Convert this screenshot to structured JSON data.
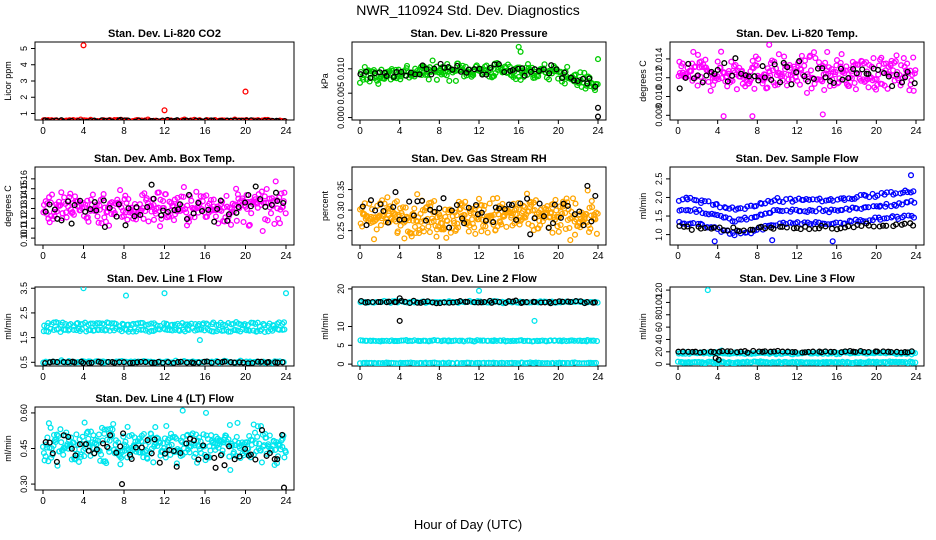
{
  "title": "NWR_110924 Std. Dev. Diagnostics",
  "xlabel": "Hour of Day (UTC)",
  "colors": {
    "red": "#ff0000",
    "green": "#00cc00",
    "magenta": "#ff00ff",
    "orange": "#ffa500",
    "blue": "#0000ff",
    "cyan": "#00e5ee",
    "black": "#000000"
  },
  "chart_data": [
    {
      "type": "scatter",
      "title": "Stan. Dev. Li-820 CO2",
      "ylabel": "Licor ppm",
      "xlim": [
        0,
        24
      ],
      "ylim": [
        0.6,
        5.4
      ],
      "xticks": [
        "0",
        "4",
        "8",
        "12",
        "16",
        "20",
        "24"
      ],
      "yticks": [
        "1",
        "2",
        "3",
        "4",
        "5"
      ],
      "series": [
        {
          "color": "red",
          "bands": [
            [
              0.55,
              0.05
            ]
          ],
          "n": 150,
          "points": [
            [
              4,
              5.2
            ],
            [
              12,
              1.2
            ],
            [
              20,
              2.35
            ]
          ]
        },
        {
          "color": "black",
          "bands": [
            [
              0.55,
              0.04
            ]
          ],
          "n": 60
        }
      ]
    },
    {
      "type": "scatter",
      "title": "Stan. Dev. Li-820 Pressure",
      "ylabel": "kPa",
      "xlim": [
        0,
        24
      ],
      "ylim": [
        -0.0005,
        0.0155
      ],
      "xticks": [
        "0",
        "4",
        "8",
        "12",
        "16",
        "20",
        "24"
      ],
      "yticks": [
        "0.000",
        "0.005",
        "0.010"
      ],
      "ytickvals": [
        0,
        0.005,
        0.01
      ],
      "series": [
        {
          "color": "green",
          "bands": [
            [
              0.0085,
              0.0012
            ]
          ],
          "n": 260,
          "arch": true,
          "points": [
            [
              16,
              0.0145
            ],
            [
              24,
              0.012
            ],
            [
              16.2,
              0.0135
            ]
          ]
        },
        {
          "color": "black",
          "bands": [
            [
              0.0085,
              0.0009
            ]
          ],
          "n": 55,
          "arch": true,
          "points": [
            [
              24,
              0.0002
            ],
            [
              24,
              0.002
            ]
          ]
        }
      ]
    },
    {
      "type": "scatter",
      "title": "Stan. Dev. Li-820 Temp.",
      "ylabel": "degrees C",
      "xlim": [
        0,
        24
      ],
      "ylim": [
        0.0075,
        0.0158
      ],
      "xticks": [
        "0",
        "4",
        "8",
        "12",
        "16",
        "20",
        "24"
      ],
      "yticks": [
        "0.008",
        "0.010",
        "0.012",
        "0.014"
      ],
      "ytickvals": [
        0.008,
        0.01,
        0.012,
        0.014
      ],
      "series": [
        {
          "color": "magenta",
          "bands": [
            [
              0.0125,
              0.0013
            ]
          ],
          "n": 300,
          "points": [
            [
              9.2,
              0.0155
            ],
            [
              4.6,
              0.0079
            ],
            [
              14.6,
              0.0081
            ],
            [
              7.5,
              0.0079
            ]
          ]
        },
        {
          "color": "black",
          "bands": [
            [
              0.0125,
              0.001
            ]
          ],
          "n": 55
        }
      ]
    },
    {
      "type": "scatter",
      "title": "Stan. Dev. Amb. Box Temp.",
      "ylabel": "degrees C",
      "xlim": [
        0,
        24
      ],
      "ylim": [
        0.093,
        0.172
      ],
      "xticks": [
        "0",
        "4",
        "8",
        "12",
        "16",
        "20",
        "24"
      ],
      "yticks": [
        "0.10",
        "0.11",
        "0.12",
        "0.13",
        "0.14",
        "0.15",
        "0.16"
      ],
      "ytickvals": [
        0.1,
        0.11,
        0.12,
        0.13,
        0.14,
        0.15,
        0.16
      ],
      "series": [
        {
          "color": "magenta",
          "bands": [
            [
              0.131,
              0.013
            ]
          ],
          "n": 300
        },
        {
          "color": "black",
          "bands": [
            [
              0.131,
              0.012
            ]
          ],
          "n": 55
        }
      ]
    },
    {
      "type": "scatter",
      "title": "Stan. Dev. Gas Stream RH",
      "ylabel": "percent",
      "xlim": [
        0,
        24
      ],
      "ylim": [
        0.215,
        0.405
      ],
      "xticks": [
        "0",
        "4",
        "8",
        "12",
        "16",
        "20",
        "24"
      ],
      "yticks": [
        "0.25",
        "0.30",
        "0.35"
      ],
      "ytickvals": [
        0.25,
        0.3,
        0.35
      ],
      "series": [
        {
          "color": "orange",
          "bands": [
            [
              0.285,
              0.032
            ]
          ],
          "n": 360
        },
        {
          "color": "black",
          "bands": [
            [
              0.29,
              0.035
            ]
          ],
          "n": 55
        }
      ]
    },
    {
      "type": "scatter",
      "title": "Stan. Dev. Sample Flow",
      "ylabel": "ml/min",
      "xlim": [
        0,
        24
      ],
      "ylim": [
        0.72,
        2.82
      ],
      "xticks": [
        "0",
        "4",
        "8",
        "12",
        "16",
        "20",
        "24"
      ],
      "yticks": [
        "1.0",
        "1.5",
        "2.0",
        "2.5"
      ],
      "ytickvals": [
        1.0,
        1.5,
        2.0,
        2.5
      ],
      "series": [
        {
          "color": "blue",
          "bands": [
            [
              1.95,
              0.04
            ],
            [
              1.65,
              0.04
            ],
            [
              1.3,
              0.04
            ]
          ],
          "n": 240,
          "dip": 0.45,
          "points": [
            [
              23.5,
              2.6
            ],
            [
              3.7,
              0.82
            ],
            [
              15.6,
              0.82
            ],
            [
              9.5,
              0.85
            ]
          ]
        },
        {
          "color": "black",
          "bands": [
            [
              1.2,
              0.05
            ]
          ],
          "n": 55,
          "dip": 0.15
        }
      ]
    },
    {
      "type": "scatter",
      "title": "Stan. Dev. Line 1 Flow",
      "ylabel": "ml/min",
      "xlim": [
        0,
        24
      ],
      "ylim": [
        0.35,
        3.55
      ],
      "xticks": [
        "0",
        "4",
        "8",
        "12",
        "16",
        "20",
        "24"
      ],
      "yticks": [
        "0.5",
        "1.5",
        "2.5",
        "3.5"
      ],
      "ytickvals": [
        0.5,
        1.5,
        2.5,
        3.5
      ],
      "series": [
        {
          "color": "cyan",
          "bands": [
            [
              2.05,
              0.06
            ],
            [
              1.8,
              0.05
            ],
            [
              0.52,
              0.03
            ]
          ],
          "n": 300,
          "points": [
            [
              4,
              3.5
            ],
            [
              8.2,
              3.2
            ],
            [
              12,
              3.3
            ],
            [
              24,
              3.3
            ],
            [
              15.5,
              1.4
            ]
          ]
        },
        {
          "color": "black",
          "bands": [
            [
              0.5,
              0.03
            ]
          ],
          "n": 55
        }
      ]
    },
    {
      "type": "scatter",
      "title": "Stan. Dev. Line 2 Flow",
      "ylabel": "ml/min",
      "xlim": [
        0,
        24
      ],
      "ylim": [
        -0.5,
        20.5
      ],
      "xticks": [
        "0",
        "4",
        "8",
        "12",
        "16",
        "20",
        "24"
      ],
      "yticks": [
        "0",
        "5",
        "10",
        "20"
      ],
      "ytickvals": [
        0,
        5,
        10,
        20
      ],
      "series": [
        {
          "color": "cyan",
          "bands": [
            [
              16.5,
              0.2
            ],
            [
              6.2,
              0.12
            ],
            [
              0.3,
              0.08
            ]
          ],
          "n": 330,
          "points": [
            [
              12,
              19.5
            ],
            [
              17.6,
              11.5
            ]
          ]
        },
        {
          "color": "black",
          "bands": [
            [
              16.5,
              0.25
            ]
          ],
          "n": 60,
          "points": [
            [
              4,
              11.5
            ],
            [
              4,
              17.5
            ]
          ]
        }
      ]
    },
    {
      "type": "scatter",
      "title": "Stan. Dev. Line 3 Flow",
      "ylabel": "ml/min",
      "xlim": [
        0,
        24
      ],
      "ylim": [
        -3,
        125
      ],
      "xticks": [
        "0",
        "4",
        "8",
        "12",
        "16",
        "20",
        "24"
      ],
      "yticks": [
        "0",
        "20",
        "40",
        "60",
        "80",
        "100",
        "120"
      ],
      "ytickvals": [
        0,
        20,
        40,
        60,
        80,
        100,
        120
      ],
      "series": [
        {
          "color": "cyan",
          "bands": [
            [
              18,
              1.2
            ],
            [
              3,
              1.0
            ]
          ],
          "n": 280,
          "points": [
            [
              3,
              120
            ],
            [
              4.4,
              22
            ]
          ]
        },
        {
          "color": "black",
          "bands": [
            [
              20,
              1.2
            ]
          ],
          "n": 55,
          "points": [
            [
              3.8,
              10
            ],
            [
              4.1,
              7
            ]
          ]
        }
      ]
    },
    {
      "type": "scatter",
      "title": "Stan. Dev. Line 4 (LT) Flow",
      "ylabel": "ml/min",
      "xlim": [
        0,
        24
      ],
      "ylim": [
        0.275,
        0.625
      ],
      "xticks": [
        "0",
        "4",
        "8",
        "12",
        "16",
        "20",
        "24"
      ],
      "yticks": [
        "0.30",
        "0.45",
        "0.60"
      ],
      "ytickvals": [
        0.3,
        0.45,
        0.6
      ],
      "series": [
        {
          "color": "cyan",
          "bands": [
            [
              0.465,
              0.055
            ]
          ],
          "n": 340,
          "points": [
            [
              13.8,
              0.61
            ],
            [
              16.1,
              0.6
            ]
          ]
        },
        {
          "color": "black",
          "bands": [
            [
              0.45,
              0.05
            ]
          ],
          "n": 55,
          "points": [
            [
              23.8,
              0.285
            ],
            [
              7.8,
              0.3
            ]
          ]
        }
      ]
    }
  ]
}
